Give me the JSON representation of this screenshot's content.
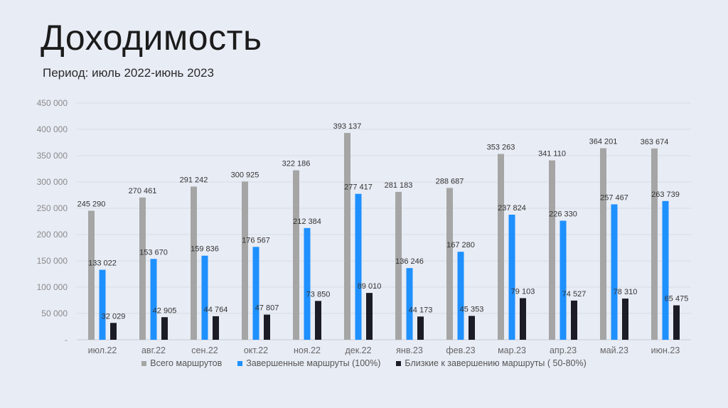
{
  "header": {
    "title": "Доходимость",
    "subtitle": "Период: июль 2022-июнь 2023"
  },
  "chart_data": {
    "type": "bar",
    "categories": [
      "июл.22",
      "авг.22",
      "сен.22",
      "окт.22",
      "ноя.22",
      "дек.22",
      "янв.23",
      "фев.23",
      "мар.23",
      "апр.23",
      "май.23",
      "июн.23"
    ],
    "series": [
      {
        "name": "Всего маршрутов",
        "color": "#a5a5a5",
        "values": [
          245290,
          270461,
          291242,
          300925,
          322186,
          393137,
          281183,
          288687,
          353263,
          341110,
          364201,
          363674
        ],
        "labels": [
          "245 290",
          "270 461",
          "291 242",
          "300 925",
          "322 186",
          "393 137",
          "281 183",
          "288 687",
          "353 263",
          "341 110",
          "364 201",
          "363 674"
        ]
      },
      {
        "name": "Завершенные маршруты  (100%)",
        "color": "#1e90ff",
        "values": [
          133022,
          153670,
          159836,
          176567,
          212384,
          277417,
          136246,
          167280,
          237824,
          226330,
          257467,
          263739
        ],
        "labels": [
          "133 022",
          "153 670",
          "159 836",
          "176 567",
          "212 384",
          "277 417",
          "136 246",
          "167 280",
          "237 824",
          "226 330",
          "257 467",
          "263 739"
        ]
      },
      {
        "name": "Близкие к завершению маршруты ( 50-80%)",
        "color": "#1b1c25",
        "values": [
          32029,
          42905,
          44764,
          47807,
          73850,
          89010,
          44173,
          45353,
          79103,
          74527,
          78310,
          65475
        ],
        "labels": [
          "32 029",
          "42 905",
          "44 764",
          "47 807",
          "73 850",
          "89 010",
          "44 173",
          "45 353",
          "79 103",
          "74 527",
          "78 310",
          "65 475"
        ]
      }
    ],
    "yticks": [
      "-",
      "50 000",
      "100 000",
      "150 000",
      "200 000",
      "250 000",
      "300 000",
      "350 000",
      "400 000",
      "450 000"
    ],
    "ylim": [
      0,
      450000
    ],
    "grid": true,
    "legend_position": "bottom"
  }
}
